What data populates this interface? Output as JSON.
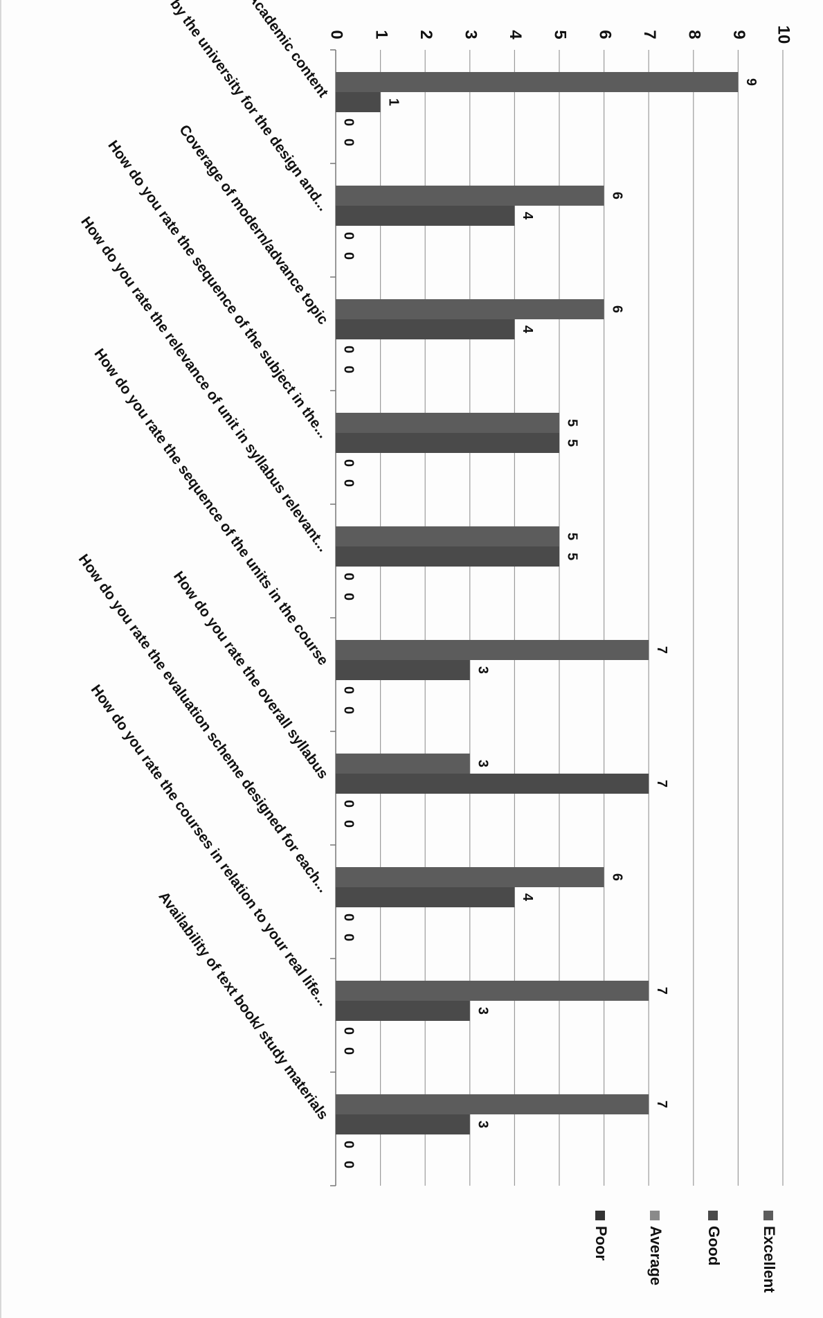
{
  "chart_data": {
    "type": "bar",
    "orientation": "horizontal, page rotated 90° clockwise",
    "categories": [
      "Academic content",
      "...owed by the university for the design and...",
      "Coverage of modern/advance topic",
      "How do you rate the sequence of the subject in the...",
      "How do you rate the relevance of unit in syllabus relevant...",
      "How do you rate the sequence of the units in the course",
      "How do you rate the overall syllabus",
      "How do you rate the evaluation scheme designed for each...",
      "How do you rate the courses in relation to your real life...",
      "Availability of text book/ study materials"
    ],
    "series": [
      {
        "name": "Excellent",
        "values": [
          9,
          6,
          6,
          5,
          5,
          7,
          3,
          6,
          7,
          7
        ],
        "color": "#5c5c5c"
      },
      {
        "name": "Good",
        "values": [
          1,
          4,
          4,
          5,
          5,
          3,
          7,
          4,
          3,
          3
        ],
        "color": "#4a4a4a"
      },
      {
        "name": "Average",
        "values": [
          0,
          0,
          0,
          0,
          0,
          0,
          0,
          0,
          0,
          0
        ],
        "color": "#8a8a8a"
      },
      {
        "name": "Poor",
        "values": [
          0,
          0,
          0,
          0,
          0,
          0,
          0,
          0,
          0,
          0
        ],
        "color": "#333333"
      }
    ],
    "value_axis": {
      "min": 0,
      "max": 10,
      "ticks": [
        "0",
        "1",
        "2",
        "3",
        "4",
        "5",
        "6",
        "7",
        "8",
        "9",
        "10"
      ]
    },
    "grid": true,
    "legend_position": "right",
    "title": "",
    "xlabel": "",
    "ylabel": ""
  }
}
